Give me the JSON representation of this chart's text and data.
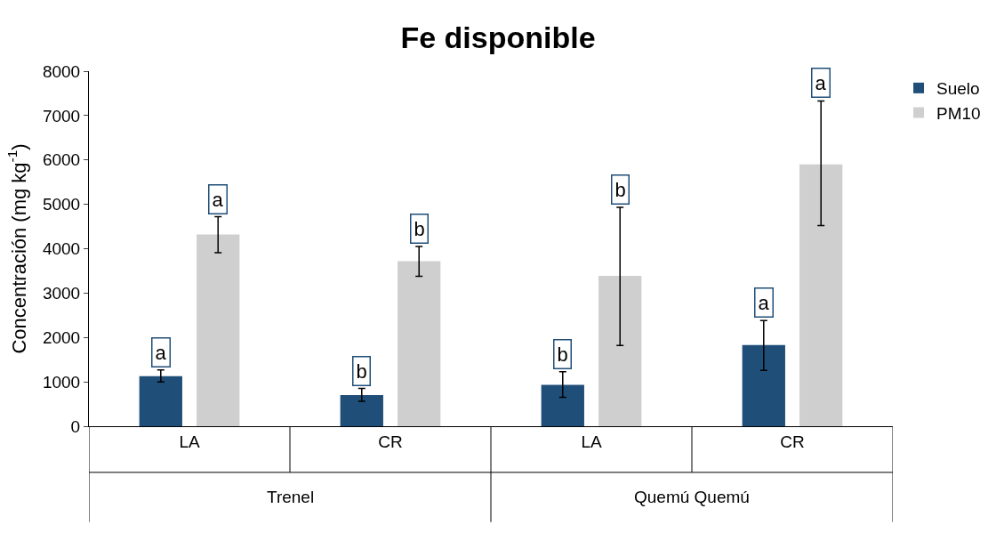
{
  "chart_data": {
    "type": "bar",
    "title": "Fe disponible",
    "ylabel": "Concentración (mg kg$^{-1}$)",
    "categories": [
      "LA",
      "CR",
      "LA",
      "CR"
    ],
    "series": [
      {
        "name": "Suelo",
        "color": "#1f4e79",
        "values": [
          1130,
          700,
          930,
          1830
        ],
        "errors": [
          [
            1000,
            1270
          ],
          [
            560,
            850
          ],
          [
            650,
            1230
          ],
          [
            1260,
            2380
          ]
        ]
      },
      {
        "name": "PM10",
        "color": "#d0cfd0",
        "values": [
          4320,
          3720,
          3390,
          5900
        ],
        "errors": [
          [
            3910,
            4720
          ],
          [
            3380,
            4050
          ],
          [
            1820,
            4930
          ],
          [
            4520,
            7330
          ]
        ]
      }
    ],
    "annotations": [
      "Trenel",
      "Quemú Quemú",
      {
        "text": "a",
        "y": 1270
      },
      {
        "text": "b",
        "y": 850
      },
      {
        "text": "b",
        "y": 1230
      },
      {
        "text": "a",
        "y": 2380
      },
      {
        "text": "a",
        "y": 4720
      },
      {
        "text": "b",
        "y": 4050
      },
      {
        "text": "b",
        "y": 4930
      },
      {
        "text": "a",
        "y": 7330
      }
    ],
    "ylim": [
      0,
      8000
    ],
    "yticks": [
      0,
      1000,
      2000,
      3000,
      4000,
      5000,
      6000,
      7000,
      8000
    ],
    "grid": false,
    "legend": "top right"
  }
}
